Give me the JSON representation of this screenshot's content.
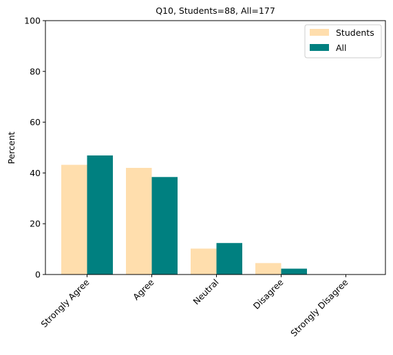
{
  "chart_data": {
    "type": "bar",
    "title": "Q10, Students=88, All=177",
    "xlabel": "",
    "ylabel": "Percent",
    "ylim": [
      0,
      100
    ],
    "yticks": [
      0,
      20,
      40,
      60,
      80,
      100
    ],
    "categories": [
      "Strongly Agree",
      "Agree",
      "Neutral",
      "Disagree",
      "Strongly Disagree"
    ],
    "series": [
      {
        "name": "Students",
        "color": "#FFDEAD",
        "values": [
          43.2,
          42.0,
          10.2,
          4.5,
          0.0
        ]
      },
      {
        "name": "All",
        "color": "#008080",
        "values": [
          46.9,
          38.4,
          12.4,
          2.3,
          0.0
        ]
      }
    ],
    "legend_position": "top-right",
    "grid": false
  }
}
